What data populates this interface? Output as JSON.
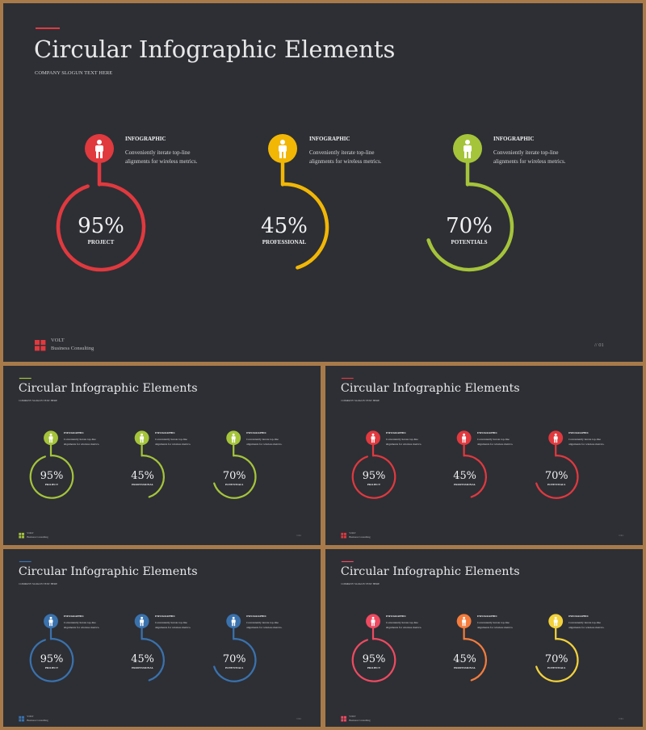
{
  "slide": {
    "title": "Circular Infographic Elements",
    "slogan": "COMPANY SLOGUN TEXT HERE",
    "brand_name": "VOLT",
    "brand_sub": "Business Consulting",
    "page": "// 01",
    "background": "#2d2f35",
    "items": [
      {
        "label": "INFOGRAPHIC",
        "desc": "Conveniently iterate top-line alignments for wireless metrics.",
        "value": "95%",
        "name": "PROJECT",
        "fraction": 0.95,
        "icon": "person-icon"
      },
      {
        "label": "INFOGRAPHIC",
        "desc": "Conveniently iterate top-line alignments for wireless metrics.",
        "value": "45%",
        "name": "PROFESSIONAL",
        "fraction": 0.45,
        "icon": "person-icon"
      },
      {
        "label": "INFOGRAPHIC",
        "desc": "Conveniently iterate top-line alignments for wireless metrics.",
        "value": "70%",
        "name": "POTENTIALS",
        "fraction": 0.7,
        "icon": "person-icon"
      }
    ]
  },
  "variants": [
    {
      "id": "main",
      "colors": [
        "#e0393e",
        "#f2b705",
        "#a5c43a"
      ],
      "accent": "#e0393e"
    },
    {
      "id": "green",
      "colors": [
        "#a5c43a",
        "#a5c43a",
        "#a5c43a"
      ],
      "accent": "#a5c43a"
    },
    {
      "id": "red",
      "colors": [
        "#e0393e",
        "#e0393e",
        "#e0393e"
      ],
      "accent": "#e0393e"
    },
    {
      "id": "blue",
      "colors": [
        "#3a72ad",
        "#3a72ad",
        "#3a72ad"
      ],
      "accent": "#3a72ad"
    },
    {
      "id": "warm",
      "colors": [
        "#ef4a60",
        "#f47c3c",
        "#f2d13b"
      ],
      "accent": "#ef4a60"
    }
  ]
}
